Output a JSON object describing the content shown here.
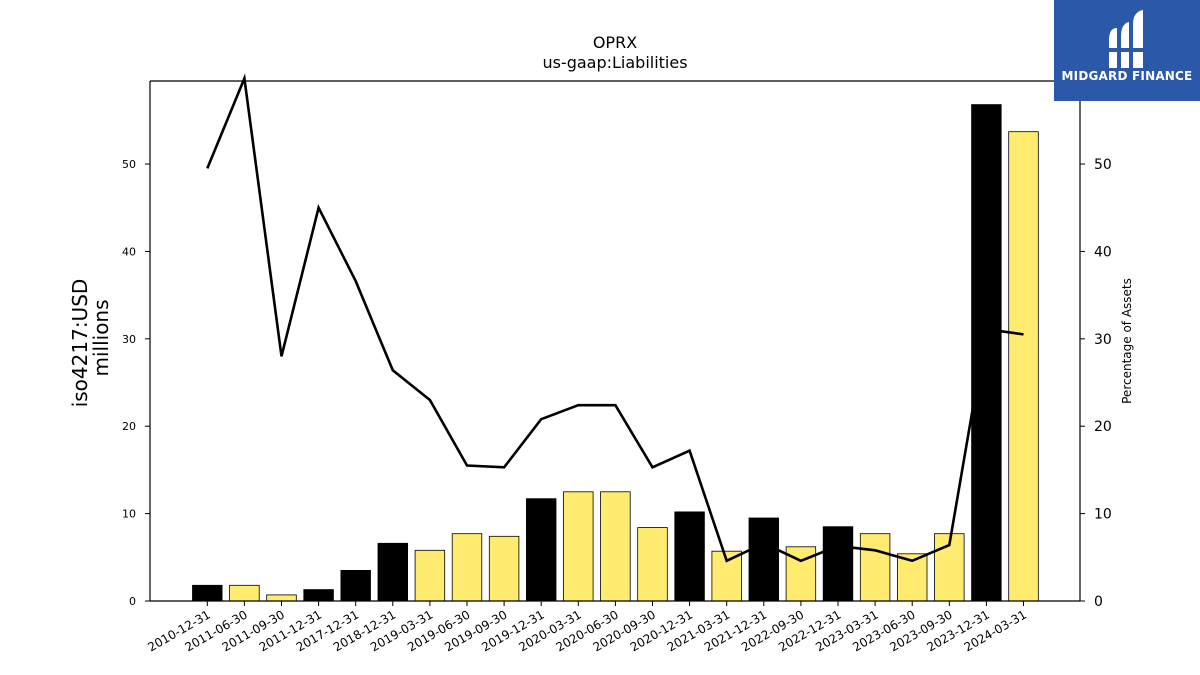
{
  "chart_data": {
    "type": "bar",
    "title": "OPRX",
    "subtitle": "us-gaap:Liabilities",
    "ylabel_left": [
      "iso4217:USD",
      "millions"
    ],
    "ylabel_right": "Percentage of Assets",
    "ylim_left": [
      0,
      59.5
    ],
    "ylim_right": [
      0,
      59.5
    ],
    "yticks_left": [
      0,
      10,
      20,
      30,
      40,
      50
    ],
    "yticks_right": [
      0,
      10,
      20,
      30,
      40,
      50
    ],
    "categories": [
      "2010-12-31",
      "2011-06-30",
      "2011-09-30",
      "2011-12-31",
      "2017-12-31",
      "2018-12-31",
      "2019-03-31",
      "2019-06-30",
      "2019-09-30",
      "2019-12-31",
      "2020-03-31",
      "2020-06-30",
      "2020-09-30",
      "2020-12-31",
      "2021-03-31",
      "2021-12-31",
      "2022-09-30",
      "2022-12-31",
      "2023-03-31",
      "2023-06-30",
      "2023-09-30",
      "2023-12-31",
      "2024-03-31"
    ],
    "series": [
      {
        "kind": "bar",
        "values": [
          1.8,
          1.8,
          0.7,
          1.3,
          3.5,
          6.6,
          5.8,
          7.7,
          7.4,
          11.7,
          12.5,
          12.5,
          8.4,
          10.2,
          5.7,
          9.5,
          6.2,
          8.5,
          7.7,
          5.4,
          7.7,
          56.8,
          53.7
        ],
        "colors": [
          "#000000",
          "#ffeb70",
          "#ffeb70",
          "#000000",
          "#000000",
          "#000000",
          "#ffeb70",
          "#ffeb70",
          "#ffeb70",
          "#000000",
          "#ffeb70",
          "#ffeb70",
          "#ffeb70",
          "#000000",
          "#ffeb70",
          "#000000",
          "#ffeb70",
          "#000000",
          "#ffeb70",
          "#ffeb70",
          "#ffeb70",
          "#000000",
          "#ffeb70"
        ]
      },
      {
        "kind": "line",
        "axis": "right",
        "color": "#000000",
        "values": [
          49.5,
          59.8,
          28.0,
          45.0,
          36.6,
          26.4,
          23.0,
          15.5,
          15.3,
          20.8,
          22.4,
          22.4,
          15.3,
          17.2,
          4.6,
          6.6,
          4.6,
          6.3,
          5.8,
          4.6,
          6.4,
          31.1,
          30.5
        ]
      }
    ]
  },
  "logo": {
    "text": "MIDGARD FINANCE",
    "background": "#2b58a8"
  }
}
